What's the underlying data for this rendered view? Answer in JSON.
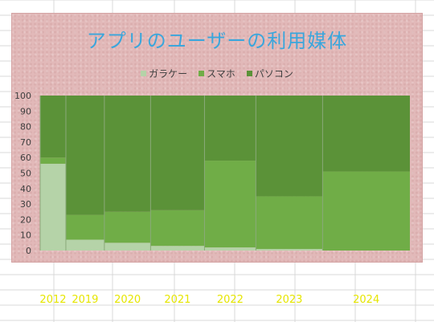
{
  "chart_data": {
    "type": "bar",
    "stacked": true,
    "variable_width": true,
    "title": "アプリのユーザーの利用媒体",
    "categories": [
      "2012",
      "2019",
      "2020",
      "2021",
      "2022",
      "2023",
      "2024"
    ],
    "widths": [
      1,
      1.5,
      1.8,
      2.1,
      2.0,
      2.6,
      3.4
    ],
    "series": [
      {
        "name": "ガラケー",
        "color": "#b5d3a8",
        "values": [
          56,
          7,
          5,
          3,
          2,
          1,
          0
        ]
      },
      {
        "name": "スマホ",
        "color": "#70ad47",
        "values": [
          4,
          16,
          20,
          23,
          56,
          34,
          51
        ]
      },
      {
        "name": "パソコン",
        "color": "#5b9238",
        "values": [
          40,
          77,
          75,
          74,
          42,
          65,
          49
        ]
      }
    ],
    "ylim": [
      0,
      100
    ],
    "yticks": [
      0,
      10,
      20,
      30,
      40,
      50,
      60,
      70,
      80,
      90,
      100
    ],
    "grid": false,
    "legend_position": "top",
    "label_color": "#e6e600"
  }
}
